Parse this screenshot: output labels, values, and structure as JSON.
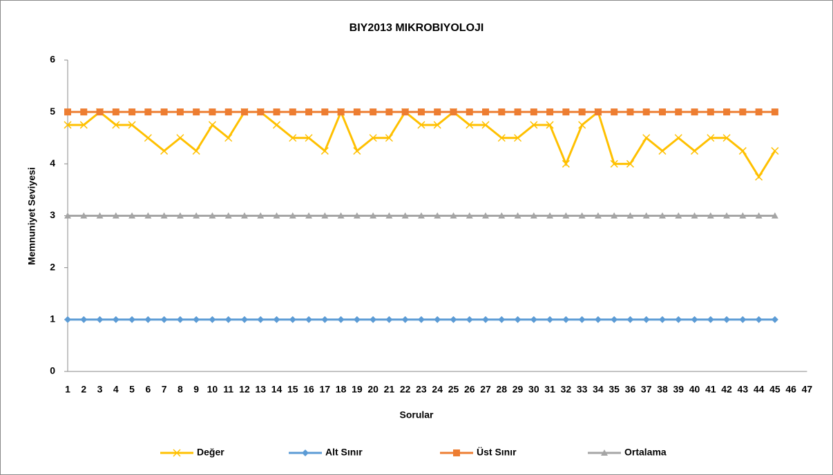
{
  "chart_data": {
    "type": "line",
    "title": "BIY2013 MIKROBIYOLOJI",
    "x_label": "Sorular",
    "y_label": "Memnuniyet Seviyesi",
    "categories": [
      "1",
      "2",
      "3",
      "4",
      "5",
      "6",
      "7",
      "8",
      "9",
      "10",
      "11",
      "12",
      "13",
      "14",
      "15",
      "16",
      "17",
      "18",
      "19",
      "20",
      "21",
      "22",
      "23",
      "24",
      "25",
      "26",
      "27",
      "28",
      "29",
      "30",
      "31",
      "32",
      "33",
      "34",
      "35",
      "36",
      "37",
      "38",
      "39",
      "40",
      "41",
      "42",
      "43",
      "44",
      "45",
      "46",
      "47"
    ],
    "series": [
      {
        "name": "Değer",
        "color": "#ffc000",
        "marker": "x",
        "values": [
          4.75,
          4.75,
          5,
          4.75,
          4.75,
          4.5,
          4.25,
          4.5,
          4.25,
          4.75,
          4.5,
          5,
          5,
          4.75,
          4.5,
          4.5,
          4.25,
          5,
          4.25,
          4.5,
          4.5,
          5,
          4.75,
          4.75,
          5,
          4.75,
          4.75,
          4.5,
          4.5,
          4.75,
          4.75,
          4,
          4.75,
          5,
          4,
          4,
          4.5,
          4.25,
          4.5,
          4.25,
          4.5,
          4.5,
          4.25,
          3.75,
          4.25,
          null,
          null
        ]
      },
      {
        "name": "Alt Sınır",
        "color": "#5b9bd5",
        "marker": "diamond",
        "values": [
          1,
          1,
          1,
          1,
          1,
          1,
          1,
          1,
          1,
          1,
          1,
          1,
          1,
          1,
          1,
          1,
          1,
          1,
          1,
          1,
          1,
          1,
          1,
          1,
          1,
          1,
          1,
          1,
          1,
          1,
          1,
          1,
          1,
          1,
          1,
          1,
          1,
          1,
          1,
          1,
          1,
          1,
          1,
          1,
          1,
          null,
          null
        ]
      },
      {
        "name": "Üst Sınır",
        "color": "#ed7d31",
        "marker": "square",
        "values": [
          5,
          5,
          5,
          5,
          5,
          5,
          5,
          5,
          5,
          5,
          5,
          5,
          5,
          5,
          5,
          5,
          5,
          5,
          5,
          5,
          5,
          5,
          5,
          5,
          5,
          5,
          5,
          5,
          5,
          5,
          5,
          5,
          5,
          5,
          5,
          5,
          5,
          5,
          5,
          5,
          5,
          5,
          5,
          5,
          5,
          null,
          null
        ]
      },
      {
        "name": "Ortalama",
        "color": "#a5a5a5",
        "marker": "triangle",
        "values": [
          3,
          3,
          3,
          3,
          3,
          3,
          3,
          3,
          3,
          3,
          3,
          3,
          3,
          3,
          3,
          3,
          3,
          3,
          3,
          3,
          3,
          3,
          3,
          3,
          3,
          3,
          3,
          3,
          3,
          3,
          3,
          3,
          3,
          3,
          3,
          3,
          3,
          3,
          3,
          3,
          3,
          3,
          3,
          3,
          3,
          null,
          null
        ]
      }
    ],
    "ylim": [
      0,
      6
    ],
    "yticks": [
      0,
      1,
      2,
      3,
      4,
      5,
      6
    ],
    "grid": false,
    "legend": "bottom"
  }
}
